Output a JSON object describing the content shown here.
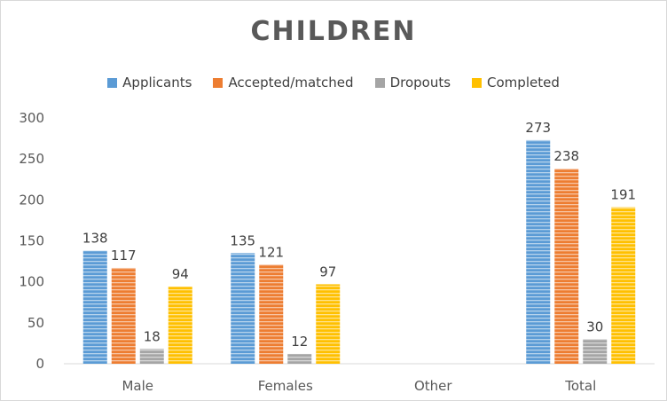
{
  "chart_data": {
    "type": "bar",
    "title": "CHILDREN",
    "categories": [
      "Male",
      "Females",
      "Other",
      "Total"
    ],
    "series": [
      {
        "name": "Applicants",
        "color": "#5b9bd5",
        "values": [
          138,
          135,
          null,
          273
        ]
      },
      {
        "name": "Accepted/matched",
        "color": "#ed7d31",
        "values": [
          117,
          121,
          null,
          238
        ]
      },
      {
        "name": "Dropouts",
        "color": "#a5a5a5",
        "values": [
          18,
          12,
          null,
          30
        ]
      },
      {
        "name": "Completed",
        "color": "#ffc000",
        "values": [
          94,
          97,
          null,
          191
        ]
      }
    ],
    "ylim": [
      0,
      300
    ],
    "yticks": [
      "0",
      "50",
      "100",
      "150",
      "200",
      "250",
      "300"
    ],
    "xlabel": "",
    "ylabel": "",
    "grid": false,
    "legend_position": "top",
    "bar_pattern": "horizontal-stripes"
  }
}
